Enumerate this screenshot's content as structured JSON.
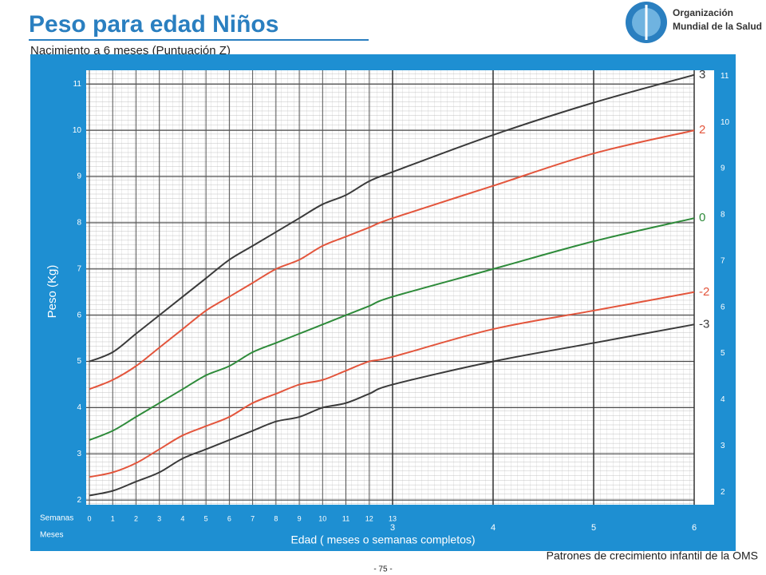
{
  "header": {
    "title": "Peso para edad Niños",
    "subtitle": "Nacimiento a 6 meses (Puntuación Z)",
    "org_line1": "Organización",
    "org_line2": "Mundial de la Salud"
  },
  "chart_data": {
    "type": "line",
    "y_label": "Peso (Kg)",
    "x_label": "Edad ( meses o semanas completos)",
    "weeks_label": "Semanas",
    "months_label": "Meses",
    "x_weeks": [
      0,
      1,
      2,
      3,
      4,
      5,
      6,
      7,
      8,
      9,
      10,
      11,
      12,
      13
    ],
    "x_months": [
      4,
      5,
      6
    ],
    "xlim_weeks": [
      0,
      13
    ],
    "xlim_months": [
      3,
      6
    ],
    "xticks_weeks": [
      0,
      1,
      2,
      3,
      4,
      5,
      6,
      7,
      8,
      9,
      10,
      11,
      12,
      13
    ],
    "xticks_months": [
      3,
      4,
      5,
      6
    ],
    "ylim": [
      1.9,
      11.3
    ],
    "yticks": [
      2,
      3,
      4,
      5,
      6,
      7,
      8,
      9,
      10,
      11
    ],
    "grid": true,
    "series": [
      {
        "name": "3",
        "color": "#3a3a3a",
        "values_weeks": [
          5.0,
          5.2,
          5.6,
          6.0,
          6.4,
          6.8,
          7.2,
          7.5,
          7.8,
          8.1,
          8.4,
          8.6,
          8.9,
          9.1
        ],
        "values_months": [
          9.9,
          10.6,
          11.2
        ]
      },
      {
        "name": "2",
        "color": "#e3553c",
        "values_weeks": [
          4.4,
          4.6,
          4.9,
          5.3,
          5.7,
          6.1,
          6.4,
          6.7,
          7.0,
          7.2,
          7.5,
          7.7,
          7.9,
          8.1
        ],
        "values_months": [
          8.8,
          9.5,
          10.0
        ]
      },
      {
        "name": "0",
        "color": "#2e8b3a",
        "values_weeks": [
          3.3,
          3.5,
          3.8,
          4.1,
          4.4,
          4.7,
          4.9,
          5.2,
          5.4,
          5.6,
          5.8,
          6.0,
          6.2,
          6.4
        ],
        "values_months": [
          7.0,
          7.6,
          8.1
        ]
      },
      {
        "name": "-2",
        "color": "#e3553c",
        "values_weeks": [
          2.5,
          2.6,
          2.8,
          3.1,
          3.4,
          3.6,
          3.8,
          4.1,
          4.3,
          4.5,
          4.6,
          4.8,
          5.0,
          5.1
        ],
        "values_months": [
          5.7,
          6.1,
          6.5
        ]
      },
      {
        "name": "-3",
        "color": "#3a3a3a",
        "values_weeks": [
          2.1,
          2.2,
          2.4,
          2.6,
          2.9,
          3.1,
          3.3,
          3.5,
          3.7,
          3.8,
          4.0,
          4.1,
          4.3,
          4.5
        ],
        "values_months": [
          5.0,
          5.4,
          5.8
        ]
      }
    ]
  },
  "footer": {
    "source": "Patrones de crecimiento infantil de la OMS",
    "page": "- 75 -"
  }
}
